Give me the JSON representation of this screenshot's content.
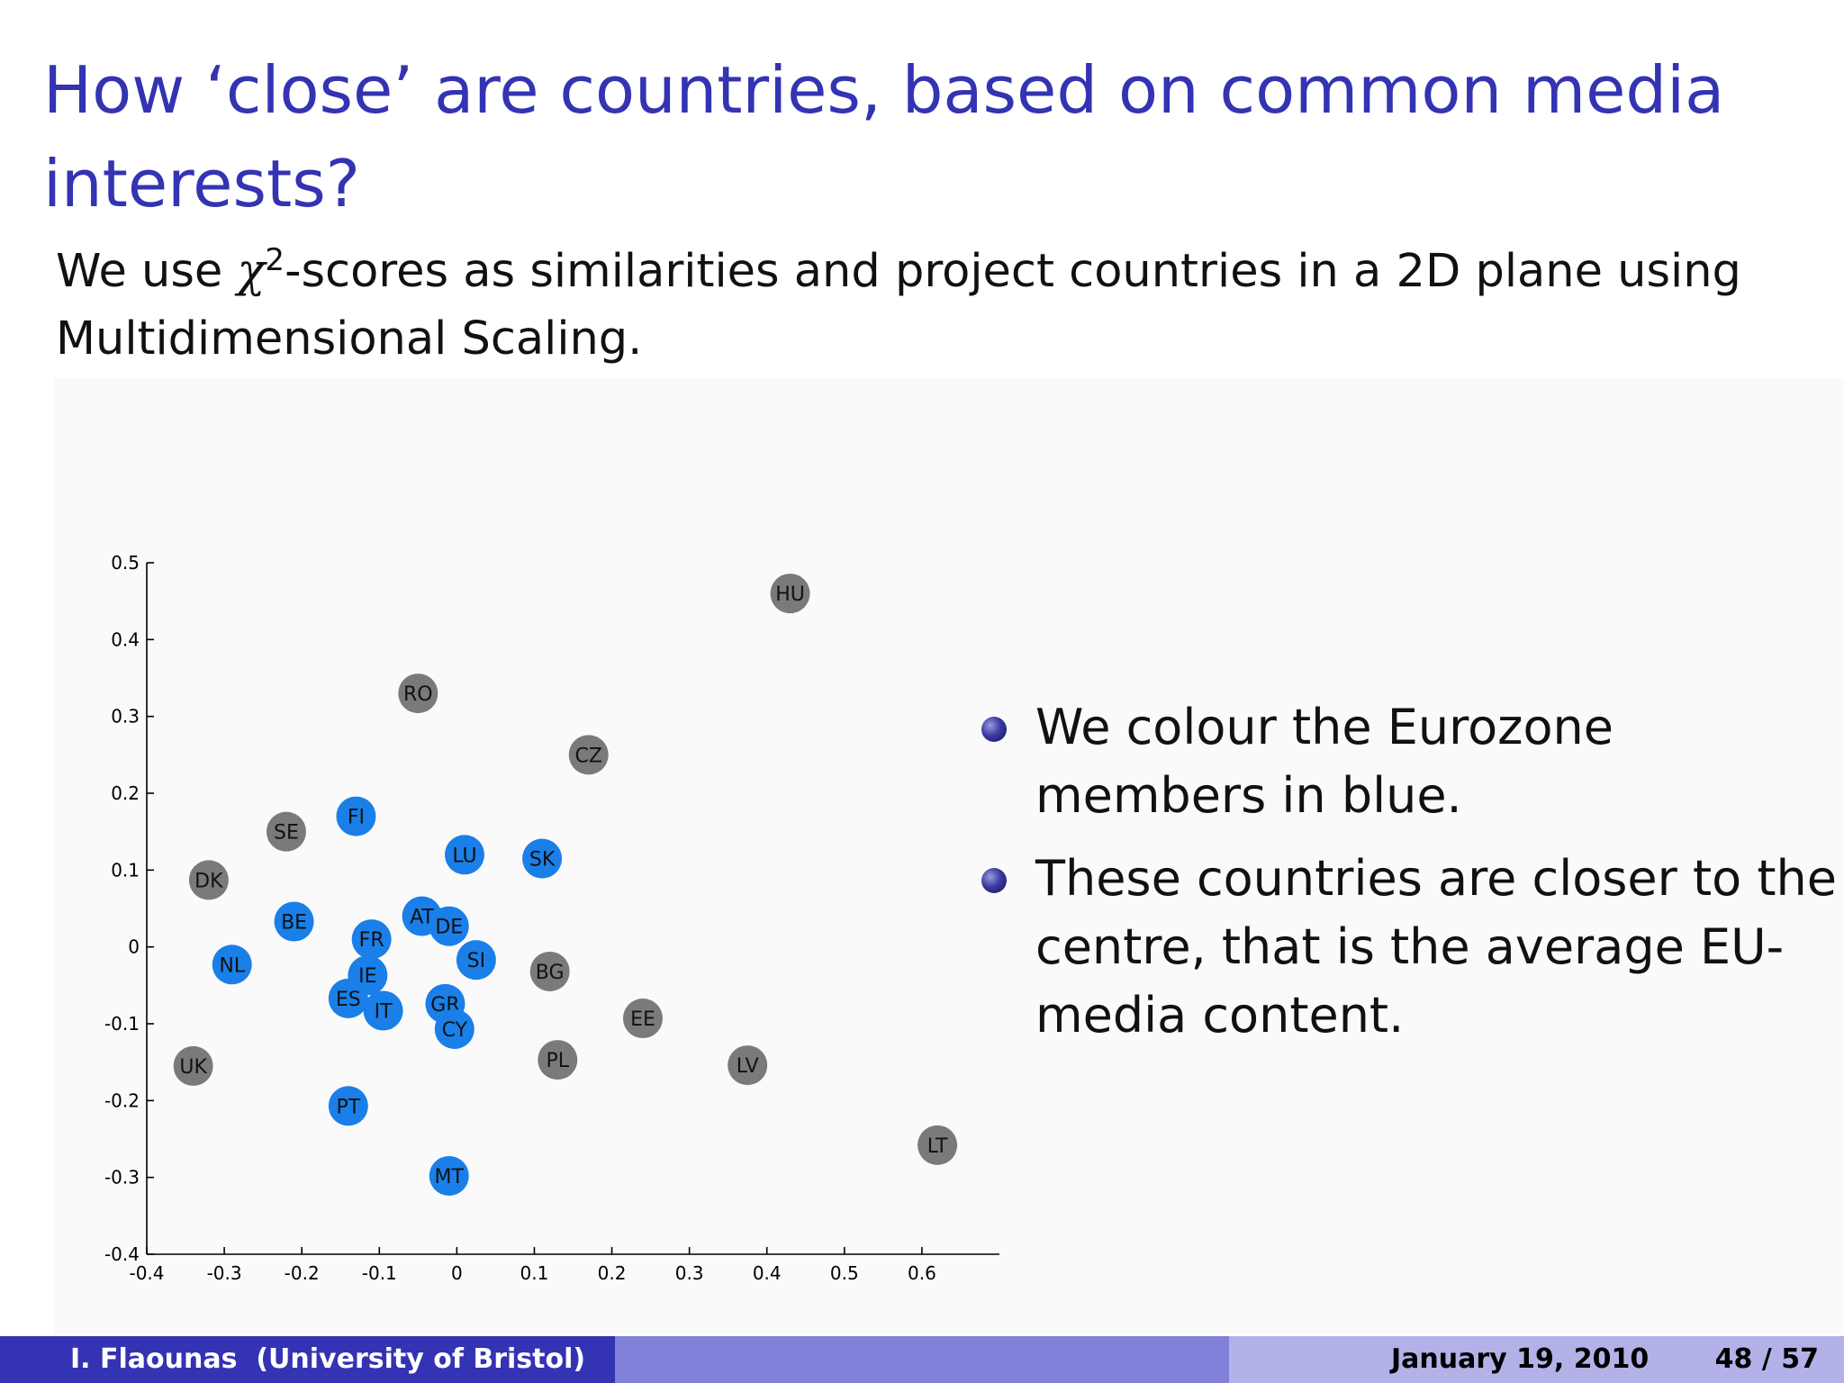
{
  "slide": {
    "title": "How ‘close’ are countries, based on common media interests?",
    "intro_before": "We use ",
    "intro_chi": "χ",
    "intro_sup": "2",
    "intro_after": "-scores as similarities and project countries in a 2D plane using Multidimensional Scaling.",
    "bullets": [
      "We colour the Eurozone members in blue.",
      "These countries are closer to the centre, that is the average EU-media content."
    ]
  },
  "footer": {
    "author": "I. Flaounas  (University of Bristol)",
    "date": "January 19, 2010",
    "page": "48 / 57"
  },
  "colors": {
    "eurozone": "#1a7fe8",
    "non_eurozone": "#7a7a7a",
    "title": "#3333b3"
  },
  "chart_data": {
    "type": "scatter",
    "xlim": [
      -0.4,
      0.7
    ],
    "ylim": [
      -0.4,
      0.5
    ],
    "xticks": [
      -0.4,
      -0.3,
      -0.2,
      -0.1,
      0,
      0.1,
      0.2,
      0.3,
      0.4,
      0.5,
      0.6
    ],
    "xtick_labels": [
      "-0.4",
      "-0.3",
      "-0.2",
      "-0.1",
      "0",
      "0.1",
      "0.2",
      "0.3",
      "0.4",
      "0.5",
      "0.6"
    ],
    "yticks": [
      -0.4,
      -0.3,
      -0.2,
      -0.1,
      0,
      0.1,
      0.2,
      0.3,
      0.4,
      0.5
    ],
    "ytick_labels": [
      "-0.4",
      "-0.3",
      "-0.2",
      "-0.1",
      "0",
      "0.1",
      "0.2",
      "0.3",
      "0.4",
      "0.5"
    ],
    "grid": false,
    "points": [
      {
        "label": "HU",
        "x": 0.43,
        "y": 0.46,
        "eurozone": false
      },
      {
        "label": "RO",
        "x": -0.05,
        "y": 0.33,
        "eurozone": false
      },
      {
        "label": "CZ",
        "x": 0.17,
        "y": 0.25,
        "eurozone": false
      },
      {
        "label": "FI",
        "x": -0.13,
        "y": 0.17,
        "eurozone": true
      },
      {
        "label": "SE",
        "x": -0.22,
        "y": 0.15,
        "eurozone": false
      },
      {
        "label": "LU",
        "x": 0.01,
        "y": 0.12,
        "eurozone": true
      },
      {
        "label": "SK",
        "x": 0.11,
        "y": 0.115,
        "eurozone": true
      },
      {
        "label": "DK",
        "x": -0.32,
        "y": 0.087,
        "eurozone": false
      },
      {
        "label": "BE",
        "x": -0.21,
        "y": 0.033,
        "eurozone": true
      },
      {
        "label": "AT",
        "x": -0.045,
        "y": 0.04,
        "eurozone": true
      },
      {
        "label": "DE",
        "x": -0.01,
        "y": 0.027,
        "eurozone": true
      },
      {
        "label": "FR",
        "x": -0.11,
        "y": 0.01,
        "eurozone": true
      },
      {
        "label": "NL",
        "x": -0.29,
        "y": -0.023,
        "eurozone": true
      },
      {
        "label": "SI",
        "x": 0.025,
        "y": -0.017,
        "eurozone": true
      },
      {
        "label": "BG",
        "x": 0.12,
        "y": -0.032,
        "eurozone": false
      },
      {
        "label": "IE",
        "x": -0.115,
        "y": -0.037,
        "eurozone": true
      },
      {
        "label": "ES",
        "x": -0.14,
        "y": -0.067,
        "eurozone": true
      },
      {
        "label": "IT",
        "x": -0.095,
        "y": -0.083,
        "eurozone": true
      },
      {
        "label": "GR",
        "x": -0.015,
        "y": -0.074,
        "eurozone": true
      },
      {
        "label": "CY",
        "x": -0.003,
        "y": -0.107,
        "eurozone": true
      },
      {
        "label": "EE",
        "x": 0.24,
        "y": -0.093,
        "eurozone": false
      },
      {
        "label": "UK",
        "x": -0.34,
        "y": -0.155,
        "eurozone": false
      },
      {
        "label": "PL",
        "x": 0.13,
        "y": -0.147,
        "eurozone": false
      },
      {
        "label": "LV",
        "x": 0.375,
        "y": -0.154,
        "eurozone": false
      },
      {
        "label": "PT",
        "x": -0.14,
        "y": -0.207,
        "eurozone": true
      },
      {
        "label": "LT",
        "x": 0.62,
        "y": -0.258,
        "eurozone": false
      },
      {
        "label": "MT",
        "x": -0.01,
        "y": -0.298,
        "eurozone": true
      }
    ]
  }
}
